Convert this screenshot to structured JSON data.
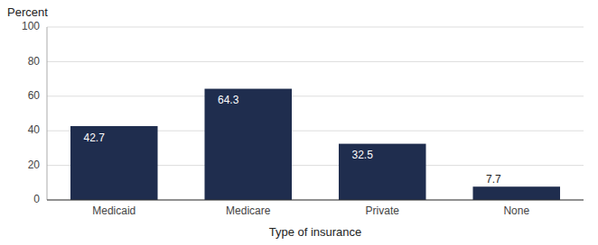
{
  "chart_data": {
    "type": "bar",
    "categories": [
      "Medicaid",
      "Medicare",
      "Private",
      "None"
    ],
    "values": [
      42.7,
      64.3,
      32.5,
      7.7
    ],
    "color": "#1f2d4e",
    "xlabel": "Type of insurance",
    "ylabel": "Percent",
    "ylim": [
      0,
      100
    ],
    "yticks": [
      0,
      20,
      40,
      60,
      80,
      100
    ],
    "grid": true,
    "data_labels": true
  }
}
